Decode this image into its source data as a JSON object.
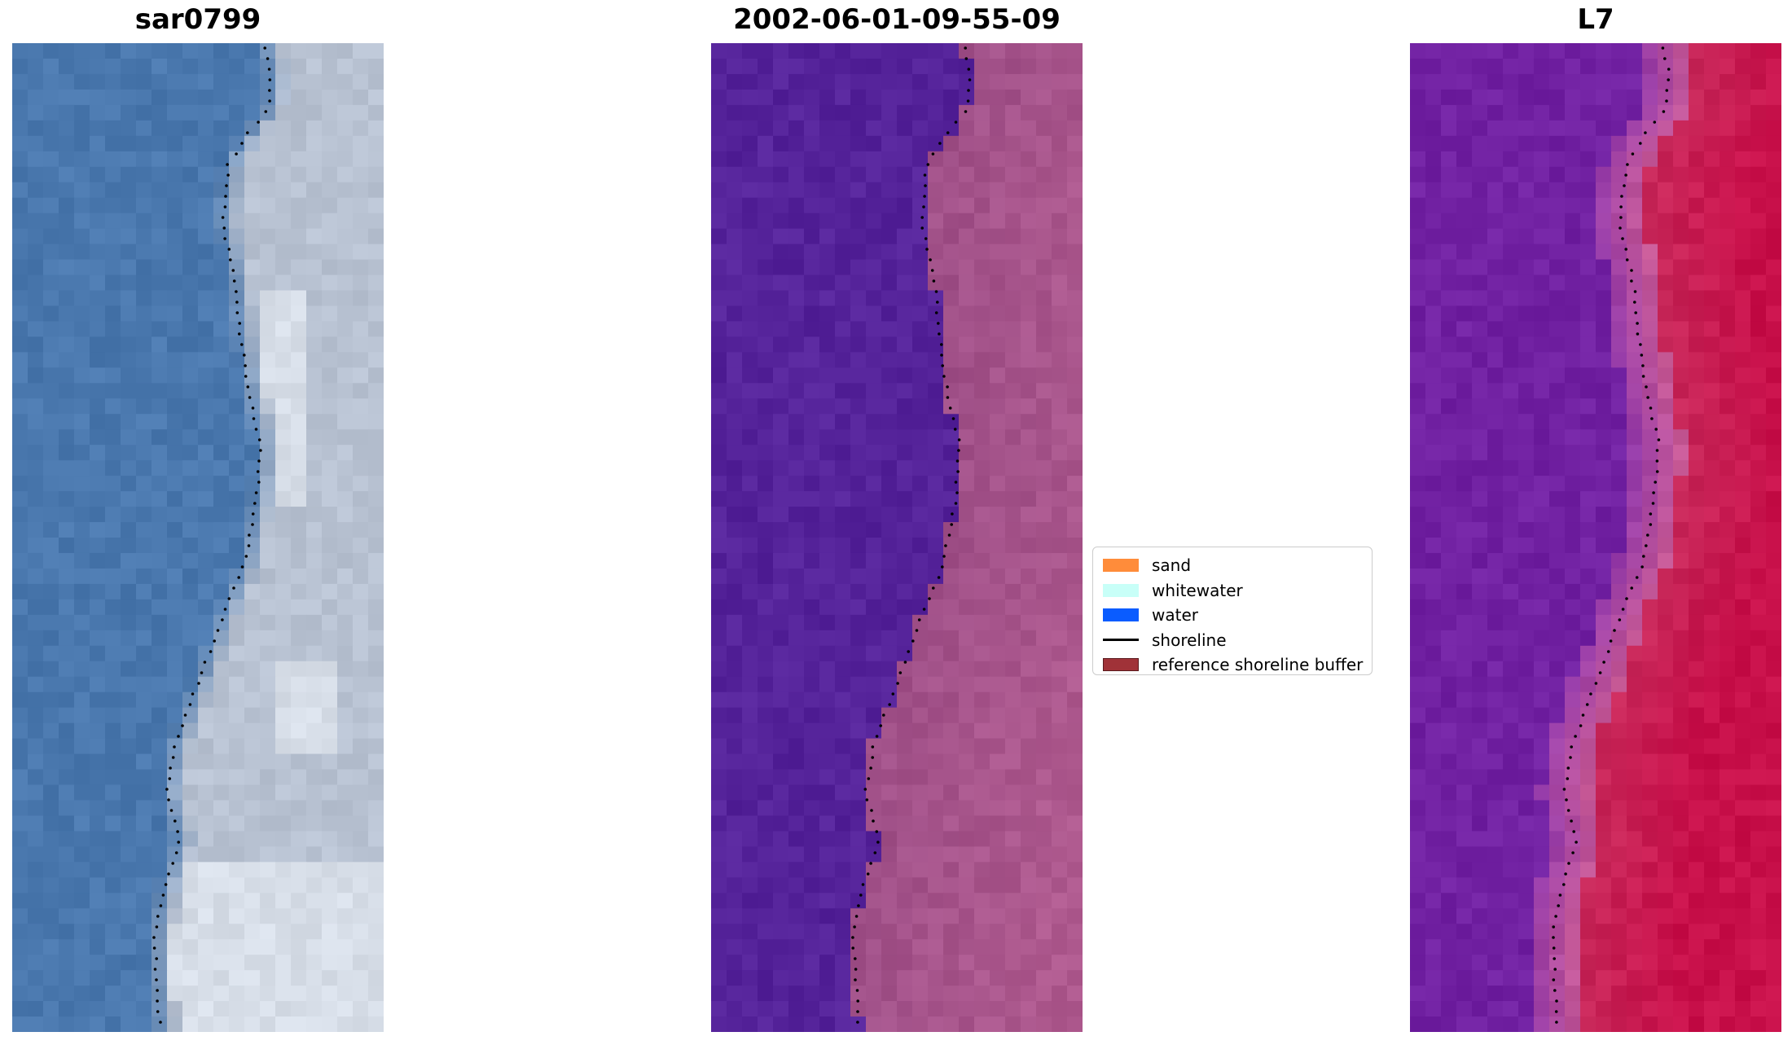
{
  "panels": [
    {
      "title": "sar0799",
      "style": "rgb"
    },
    {
      "title": "2002-06-01-09-55-09",
      "style": "classified"
    },
    {
      "title": "L7",
      "style": "mndwi"
    }
  ],
  "colors": {
    "water_class": "#55239a",
    "sand_class": "#a05088",
    "rgb_water": "#4a78ae",
    "rgb_sand": "#b8c2d2",
    "mndwi_low": "#6a1aa0",
    "mndwi_high": "#c8104a"
  },
  "legend": {
    "items": [
      {
        "label": "sand",
        "color": "#ff8c3a",
        "kind": "patch"
      },
      {
        "label": "whitewater",
        "color": "#c8fff8",
        "kind": "patch"
      },
      {
        "label": "water",
        "color": "#0a5cff",
        "kind": "patch"
      },
      {
        "label": "shoreline",
        "color": "#000000",
        "kind": "line"
      },
      {
        "label": "reference shoreline buffer",
        "color": "#a03238",
        "kind": "patch"
      }
    ]
  }
}
